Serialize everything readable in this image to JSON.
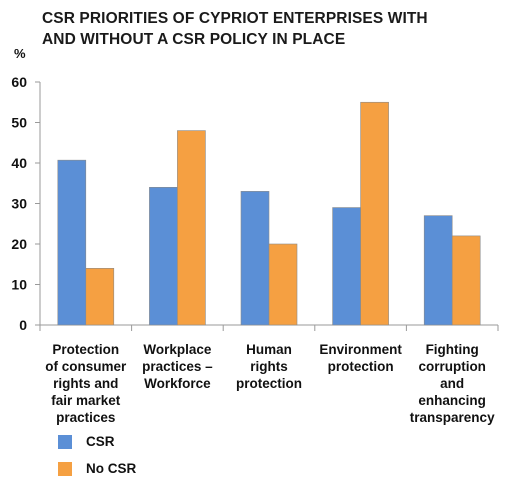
{
  "chart_data": {
    "type": "bar",
    "title_lines": [
      "CSR PRIORITIES OF CYPRIOT ENTERPRISES WITH",
      "AND WITHOUT A CSR POLICY IN PLACE"
    ],
    "ylabel": "%",
    "ylim": [
      0,
      60
    ],
    "yticks": [
      0,
      10,
      20,
      30,
      40,
      50,
      60
    ],
    "grid": false,
    "legend_position": "bottom-left",
    "categories": [
      [
        "Protection",
        "of consumer",
        "rights and",
        "fair market",
        "practices"
      ],
      [
        "Workplace",
        "practices –",
        "Workforce"
      ],
      [
        "Human",
        "rights",
        "protection"
      ],
      [
        "Environment",
        "protection"
      ],
      [
        "Fighting",
        "corruption",
        "and",
        "enhancing",
        "transparency"
      ]
    ],
    "series": [
      {
        "name": "CSR",
        "color": "#5b8fd6",
        "values": [
          40.7,
          34,
          33,
          29,
          27
        ]
      },
      {
        "name": "No CSR",
        "color": "#f5a042",
        "values": [
          14,
          48,
          20,
          55,
          22
        ]
      }
    ]
  }
}
